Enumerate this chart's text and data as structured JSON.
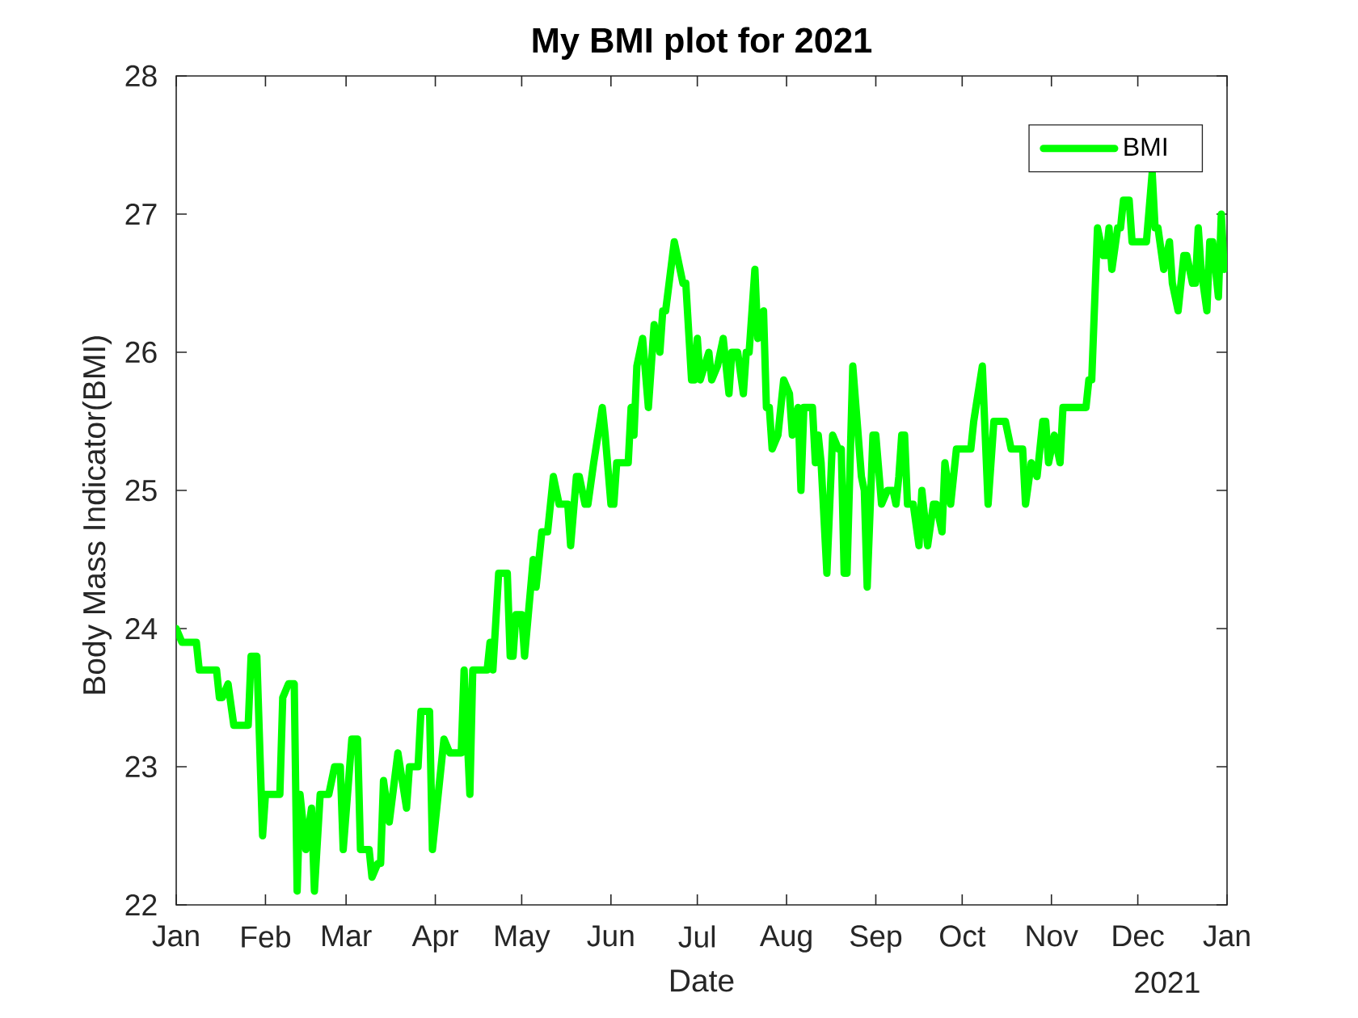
{
  "chart_data": {
    "type": "line",
    "title": "My BMI plot for 2021",
    "xlabel": "Date",
    "ylabel": "Body Mass Indicator(BMI)",
    "annotations": [
      "2021"
    ],
    "x": [
      "2021-01-01",
      "2021-01-03",
      "2021-01-08",
      "2021-01-09",
      "2021-01-15",
      "2021-01-16",
      "2021-01-17",
      "2021-01-19",
      "2021-01-21",
      "2021-01-26",
      "2021-01-27",
      "2021-01-29",
      "2021-01-31",
      "2021-02-01",
      "2021-02-06",
      "2021-02-07",
      "2021-02-09",
      "2021-02-11",
      "2021-02-12",
      "2021-02-13",
      "2021-02-15",
      "2021-02-17",
      "2021-02-18",
      "2021-02-20",
      "2021-02-23",
      "2021-02-25",
      "2021-02-27",
      "2021-02-28",
      "2021-03-03",
      "2021-03-05",
      "2021-03-06",
      "2021-03-09",
      "2021-03-10",
      "2021-03-12",
      "2021-03-13",
      "2021-03-14",
      "2021-03-16",
      "2021-03-19",
      "2021-03-22",
      "2021-03-23",
      "2021-03-26",
      "2021-03-27",
      "2021-03-30",
      "2021-03-31",
      "2021-04-04",
      "2021-04-06",
      "2021-04-10",
      "2021-04-11",
      "2021-04-13",
      "2021-04-14",
      "2021-04-19",
      "2021-04-20",
      "2021-04-21",
      "2021-04-23",
      "2021-04-26",
      "2021-04-27",
      "2021-04-28",
      "2021-04-29",
      "2021-05-01",
      "2021-05-02",
      "2021-05-05",
      "2021-05-06",
      "2021-05-08",
      "2021-05-10",
      "2021-05-12",
      "2021-05-14",
      "2021-05-17",
      "2021-05-18",
      "2021-05-20",
      "2021-05-21",
      "2021-05-23",
      "2021-05-24",
      "2021-05-26",
      "2021-05-29",
      "2021-05-30",
      "2021-06-01",
      "2021-06-02",
      "2021-06-03",
      "2021-06-07",
      "2021-06-08",
      "2021-06-09",
      "2021-06-10",
      "2021-06-12",
      "2021-06-14",
      "2021-06-16",
      "2021-06-18",
      "2021-06-19",
      "2021-06-20",
      "2021-06-23",
      "2021-06-26",
      "2021-06-27",
      "2021-06-29",
      "2021-06-30",
      "2021-07-01",
      "2021-07-02",
      "2021-07-05",
      "2021-07-06",
      "2021-07-08",
      "2021-07-10",
      "2021-07-12",
      "2021-07-13",
      "2021-07-15",
      "2021-07-17",
      "2021-07-18",
      "2021-07-19",
      "2021-07-21",
      "2021-07-22",
      "2021-07-24",
      "2021-07-25",
      "2021-07-26",
      "2021-07-27",
      "2021-07-29",
      "2021-07-31",
      "2021-08-02",
      "2021-08-03",
      "2021-08-05",
      "2021-08-06",
      "2021-08-07",
      "2021-08-10",
      "2021-08-11",
      "2021-08-12",
      "2021-08-13",
      "2021-08-15",
      "2021-08-17",
      "2021-08-19",
      "2021-08-20",
      "2021-08-21",
      "2021-08-22",
      "2021-08-24",
      "2021-08-27",
      "2021-08-28",
      "2021-08-29",
      "2021-08-31",
      "2021-09-01",
      "2021-09-03",
      "2021-09-05",
      "2021-09-07",
      "2021-09-08",
      "2021-09-09",
      "2021-09-10",
      "2021-09-11",
      "2021-09-12",
      "2021-09-14",
      "2021-09-16",
      "2021-09-17",
      "2021-09-19",
      "2021-09-21",
      "2021-09-22",
      "2021-09-24",
      "2021-09-25",
      "2021-09-27",
      "2021-09-29",
      "2021-10-04",
      "2021-10-05",
      "2021-10-08",
      "2021-10-10",
      "2021-10-12",
      "2021-10-16",
      "2021-10-18",
      "2021-10-22",
      "2021-10-23",
      "2021-10-25",
      "2021-10-27",
      "2021-10-29",
      "2021-10-30",
      "2021-10-31",
      "2021-11-02",
      "2021-11-04",
      "2021-11-05",
      "2021-11-13",
      "2021-11-14",
      "2021-11-15",
      "2021-11-17",
      "2021-11-19",
      "2021-11-20",
      "2021-11-21",
      "2021-11-22",
      "2021-11-24",
      "2021-11-25",
      "2021-11-26",
      "2021-11-28",
      "2021-11-29",
      "2021-12-04",
      "2021-12-06",
      "2021-12-07",
      "2021-12-08",
      "2021-12-10",
      "2021-12-12",
      "2021-12-13",
      "2021-12-15",
      "2021-12-17",
      "2021-12-18",
      "2021-12-20",
      "2021-12-21",
      "2021-12-22",
      "2021-12-23",
      "2021-12-25",
      "2021-12-26",
      "2021-12-27",
      "2021-12-29",
      "2021-12-30",
      "2021-12-31"
    ],
    "series": [
      {
        "name": "BMI",
        "color": "#00ff00",
        "values": [
          24.0,
          23.9,
          23.9,
          23.7,
          23.7,
          23.5,
          23.5,
          23.6,
          23.3,
          23.3,
          23.8,
          23.8,
          22.5,
          22.8,
          22.8,
          23.5,
          23.6,
          23.6,
          22.1,
          22.8,
          22.4,
          22.7,
          22.1,
          22.8,
          22.8,
          23.0,
          23.0,
          22.4,
          23.2,
          23.2,
          22.4,
          22.4,
          22.2,
          22.3,
          22.3,
          22.9,
          22.6,
          23.1,
          22.7,
          23.0,
          23.0,
          23.4,
          23.4,
          22.4,
          23.2,
          23.1,
          23.1,
          23.7,
          22.8,
          23.7,
          23.7,
          23.9,
          23.7,
          24.4,
          24.4,
          23.8,
          23.8,
          24.1,
          24.1,
          23.8,
          24.5,
          24.3,
          24.7,
          24.7,
          25.1,
          24.9,
          24.9,
          24.6,
          25.1,
          25.1,
          24.9,
          24.9,
          25.2,
          25.6,
          25.4,
          24.9,
          24.9,
          25.2,
          25.2,
          25.6,
          25.4,
          25.9,
          26.1,
          25.6,
          26.2,
          26.0,
          26.3,
          26.3,
          26.8,
          26.5,
          26.5,
          25.8,
          25.8,
          26.1,
          25.8,
          26.0,
          25.8,
          25.9,
          26.1,
          25.7,
          26.0,
          26.0,
          25.7,
          26.0,
          26.0,
          26.6,
          26.1,
          26.3,
          25.6,
          25.6,
          25.3,
          25.4,
          25.8,
          25.7,
          25.4,
          25.6,
          25.0,
          25.6,
          25.6,
          25.2,
          25.4,
          25.2,
          24.4,
          25.4,
          25.3,
          25.3,
          24.4,
          24.4,
          25.9,
          25.1,
          25.0,
          24.3,
          25.4,
          25.4,
          24.9,
          25.0,
          25.0,
          24.9,
          25.1,
          25.4,
          25.4,
          24.9,
          24.9,
          24.6,
          25.0,
          24.6,
          24.9,
          24.9,
          24.7,
          25.2,
          24.9,
          25.3,
          25.3,
          25.5,
          25.9,
          24.9,
          25.5,
          25.5,
          25.3,
          25.3,
          24.9,
          25.2,
          25.1,
          25.5,
          25.5,
          25.2,
          25.4,
          25.2,
          25.6,
          25.6,
          25.8,
          25.8,
          26.9,
          26.7,
          26.7,
          26.9,
          26.6,
          26.9,
          26.9,
          27.1,
          27.1,
          26.8,
          26.8,
          27.3,
          26.9,
          26.9,
          26.6,
          26.8,
          26.5,
          26.3,
          26.7,
          26.7,
          26.5,
          26.5,
          26.9,
          26.6,
          26.3,
          26.8,
          26.8,
          26.4,
          27.0,
          26.6
        ]
      }
    ],
    "xlim": [
      "2021-01-01",
      "2022-01-01"
    ],
    "xticks": [
      {
        "value": "2021-01-01",
        "label": "Jan"
      },
      {
        "value": "2021-02-01",
        "label": "Feb"
      },
      {
        "value": "2021-03-01",
        "label": "Mar"
      },
      {
        "value": "2021-04-01",
        "label": "Apr"
      },
      {
        "value": "2021-05-01",
        "label": "May"
      },
      {
        "value": "2021-06-01",
        "label": "Jun"
      },
      {
        "value": "2021-07-01",
        "label": "Jul"
      },
      {
        "value": "2021-08-01",
        "label": "Aug"
      },
      {
        "value": "2021-09-01",
        "label": "Sep"
      },
      {
        "value": "2021-10-01",
        "label": "Oct"
      },
      {
        "value": "2021-11-01",
        "label": "Nov"
      },
      {
        "value": "2021-12-01",
        "label": "Dec"
      },
      {
        "value": "2022-01-01",
        "label": "Jan"
      }
    ],
    "ylim": [
      22,
      28
    ],
    "yticks": [
      22,
      23,
      24,
      25,
      26,
      27,
      28
    ],
    "legend": "top right"
  }
}
